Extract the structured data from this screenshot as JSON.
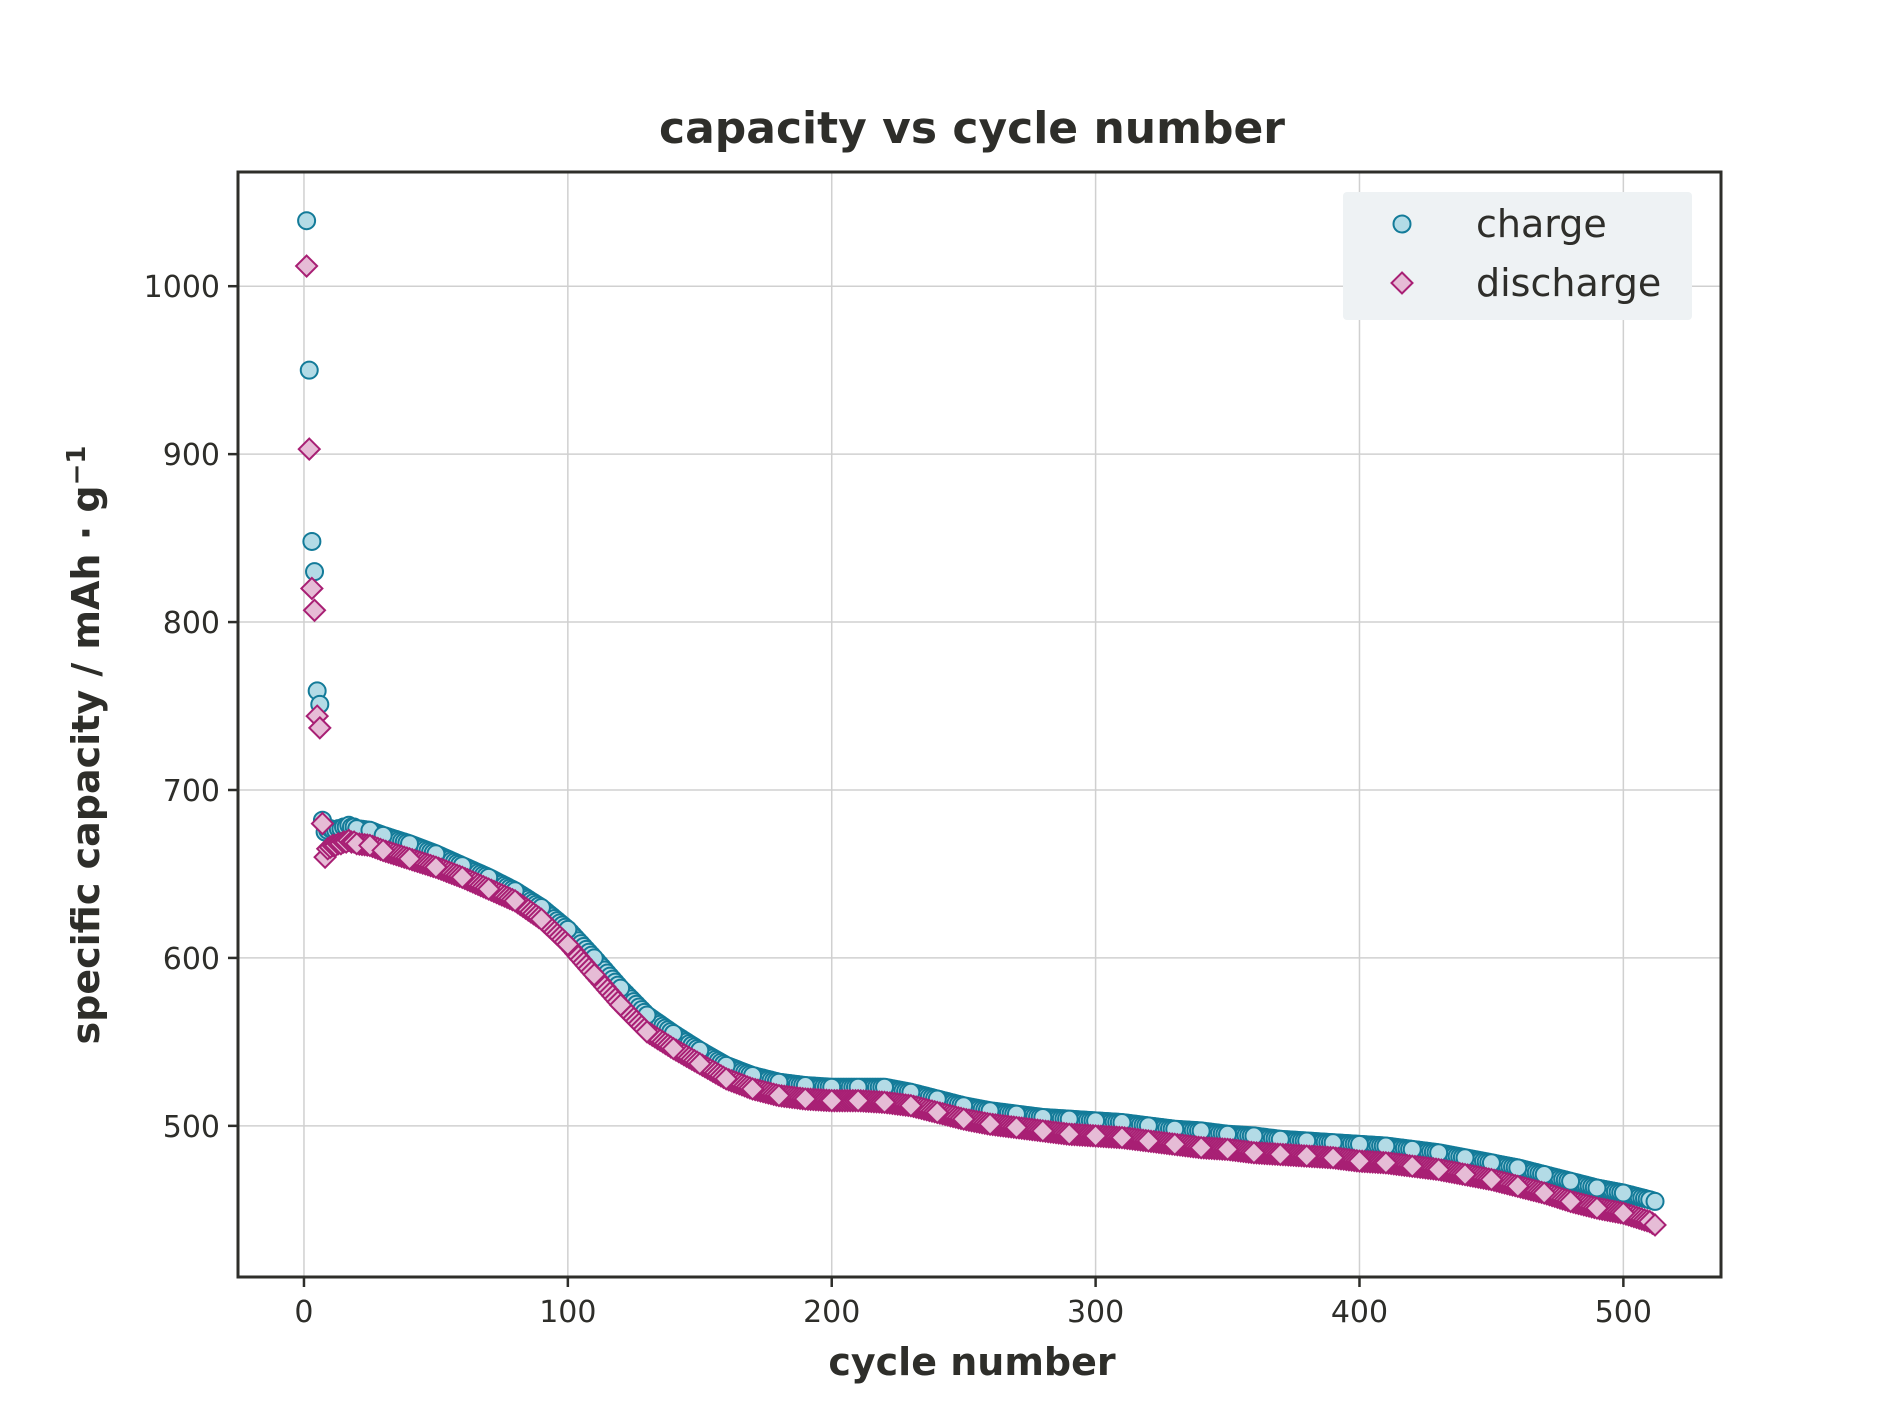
{
  "chart_data": {
    "type": "scatter",
    "title": "capacity vs cycle number",
    "xlabel": "cycle number",
    "ylabel": "specific capacity / mAh · g",
    "ylabel_superscript": "−1",
    "xlim": [
      -25,
      537
    ],
    "ylim": [
      410,
      1068
    ],
    "xticks": [
      0,
      100,
      200,
      300,
      400,
      500
    ],
    "yticks": [
      500,
      600,
      700,
      800,
      900,
      1000
    ],
    "grid": true,
    "legend_position": "top-right",
    "colors": {
      "charge_fill": "#b3dbe6",
      "charge_edge": "#137b99",
      "discharge_fill": "#e6bcd6",
      "discharge_edge": "#a81f74",
      "axis": "#2e2e2a",
      "grid": "#d0d0d0",
      "legend_bg": "#eef2f4"
    },
    "series": [
      {
        "name": "charge",
        "marker": "circle",
        "x": [
          1,
          2,
          3,
          4,
          5,
          6,
          7,
          8,
          9,
          10,
          11,
          12,
          13,
          14,
          15,
          16,
          17,
          18,
          19,
          20,
          25,
          30,
          40,
          50,
          60,
          70,
          80,
          90,
          100,
          110,
          120,
          130,
          140,
          150,
          160,
          170,
          180,
          190,
          200,
          210,
          220,
          230,
          240,
          250,
          260,
          270,
          280,
          290,
          300,
          310,
          320,
          330,
          340,
          350,
          360,
          370,
          380,
          390,
          400,
          410,
          420,
          430,
          440,
          450,
          460,
          470,
          480,
          490,
          500,
          510,
          512
        ],
        "y": [
          1039,
          950,
          848,
          830,
          759,
          751,
          682,
          675,
          676,
          677,
          676,
          676,
          677,
          677,
          678,
          678,
          679,
          678,
          678,
          677,
          676,
          673,
          668,
          662,
          655,
          648,
          640,
          630,
          617,
          600,
          582,
          566,
          555,
          545,
          536,
          530,
          526,
          524,
          523,
          523,
          523,
          520,
          516,
          512,
          509,
          507,
          505,
          504,
          503,
          502,
          500,
          498,
          497,
          495,
          494,
          492,
          491,
          490,
          489,
          488,
          486,
          484,
          481,
          478,
          475,
          471,
          467,
          463,
          460,
          456,
          455
        ]
      },
      {
        "name": "discharge",
        "marker": "diamond",
        "x": [
          1,
          2,
          3,
          4,
          5,
          6,
          7,
          8,
          9,
          10,
          11,
          12,
          13,
          14,
          15,
          16,
          17,
          18,
          19,
          20,
          25,
          30,
          40,
          50,
          60,
          70,
          80,
          90,
          100,
          110,
          120,
          130,
          140,
          150,
          160,
          170,
          180,
          190,
          200,
          210,
          220,
          230,
          240,
          250,
          260,
          270,
          280,
          290,
          300,
          310,
          320,
          330,
          340,
          350,
          360,
          370,
          380,
          390,
          400,
          410,
          420,
          430,
          440,
          450,
          460,
          470,
          480,
          490,
          500,
          510,
          512
        ],
        "y": [
          1012,
          903,
          820,
          807,
          744,
          737,
          680,
          660,
          665,
          666,
          667,
          667,
          668,
          668,
          669,
          669,
          670,
          669,
          669,
          668,
          667,
          664,
          659,
          654,
          648,
          641,
          634,
          623,
          608,
          590,
          572,
          556,
          546,
          537,
          528,
          522,
          518,
          516,
          515,
          515,
          514,
          512,
          508,
          504,
          501,
          499,
          497,
          495,
          494,
          493,
          491,
          489,
          487,
          486,
          484,
          483,
          482,
          481,
          479,
          478,
          476,
          474,
          471,
          468,
          464,
          460,
          455,
          451,
          448,
          443,
          441
        ]
      }
    ]
  }
}
